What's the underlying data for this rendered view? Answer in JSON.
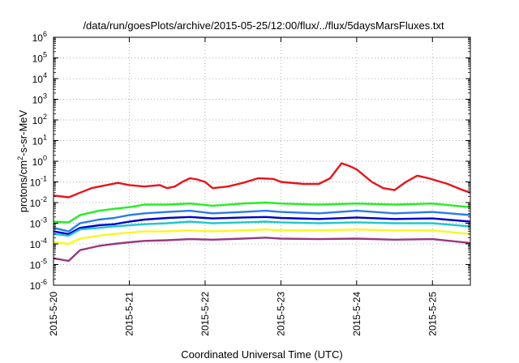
{
  "chart_data": {
    "type": "line",
    "title": "/data/run/goesPlots/archive/2015-05-25/12:00/flux/../flux/5daysMarsFluxes.txt",
    "xlabel": "Coordinated Universal Time (UTC)",
    "ylabel_parts": {
      "base": "protons/cm",
      "sup": "2",
      "rest": "-s-sr-MeV"
    },
    "yscale": "log",
    "ylim": [
      1e-06,
      1000000.0
    ],
    "xlim": [
      0,
      5.5
    ],
    "grid": true,
    "x_ticks": [
      {
        "x": 0,
        "label": "2015-5-20"
      },
      {
        "x": 1,
        "label": "2015-5-21"
      },
      {
        "x": 2,
        "label": "2015-5-22"
      },
      {
        "x": 3,
        "label": "2015-5-23"
      },
      {
        "x": 4,
        "label": "2015-5-24"
      },
      {
        "x": 5,
        "label": "2015-5-25"
      }
    ],
    "y_ticks": [
      {
        "exp": -6,
        "base": "10",
        "sup": "-6"
      },
      {
        "exp": -5,
        "base": "10",
        "sup": "-5"
      },
      {
        "exp": -4,
        "base": "10",
        "sup": "-4"
      },
      {
        "exp": -3,
        "base": "10",
        "sup": "-3"
      },
      {
        "exp": -2,
        "base": "10",
        "sup": "-2"
      },
      {
        "exp": -1,
        "base": "10",
        "sup": "-1"
      },
      {
        "exp": 0,
        "base": "10",
        "sup": "0"
      },
      {
        "exp": 1,
        "base": "10",
        "sup": "1"
      },
      {
        "exp": 2,
        "base": "10",
        "sup": "2"
      },
      {
        "exp": 3,
        "base": "10",
        "sup": "3"
      },
      {
        "exp": 4,
        "base": "10",
        "sup": "4"
      },
      {
        "exp": 5,
        "base": "10",
        "sup": "5"
      },
      {
        "exp": 6,
        "base": "10",
        "sup": "6"
      }
    ],
    "series": [
      {
        "color": "#e8141c",
        "points": [
          [
            0,
            0.022
          ],
          [
            0.2,
            0.018
          ],
          [
            0.35,
            0.03
          ],
          [
            0.5,
            0.05
          ],
          [
            0.7,
            0.07
          ],
          [
            0.85,
            0.09
          ],
          [
            1.0,
            0.07
          ],
          [
            1.2,
            0.06
          ],
          [
            1.4,
            0.07
          ],
          [
            1.5,
            0.05
          ],
          [
            1.6,
            0.06
          ],
          [
            1.7,
            0.1
          ],
          [
            1.8,
            0.15
          ],
          [
            1.9,
            0.13
          ],
          [
            2.0,
            0.1
          ],
          [
            2.1,
            0.05
          ],
          [
            2.3,
            0.06
          ],
          [
            2.5,
            0.09
          ],
          [
            2.7,
            0.15
          ],
          [
            2.9,
            0.14
          ],
          [
            3.0,
            0.1
          ],
          [
            3.3,
            0.08
          ],
          [
            3.5,
            0.08
          ],
          [
            3.65,
            0.15
          ],
          [
            3.8,
            0.8
          ],
          [
            3.9,
            0.6
          ],
          [
            4.0,
            0.4
          ],
          [
            4.2,
            0.1
          ],
          [
            4.35,
            0.05
          ],
          [
            4.5,
            0.04
          ],
          [
            4.65,
            0.1
          ],
          [
            4.8,
            0.2
          ],
          [
            4.95,
            0.15
          ],
          [
            5.2,
            0.08
          ],
          [
            5.4,
            0.04
          ],
          [
            5.5,
            0.03
          ]
        ]
      },
      {
        "color": "#22ee22",
        "points": [
          [
            0,
            0.0012
          ],
          [
            0.2,
            0.0011
          ],
          [
            0.35,
            0.0025
          ],
          [
            0.6,
            0.004
          ],
          [
            0.8,
            0.005
          ],
          [
            1.0,
            0.006
          ],
          [
            1.2,
            0.008
          ],
          [
            1.5,
            0.008
          ],
          [
            1.8,
            0.009
          ],
          [
            2.1,
            0.007
          ],
          [
            2.5,
            0.009
          ],
          [
            2.8,
            0.01
          ],
          [
            3.0,
            0.009
          ],
          [
            3.5,
            0.008
          ],
          [
            4.0,
            0.009
          ],
          [
            4.5,
            0.008
          ],
          [
            5.0,
            0.009
          ],
          [
            5.5,
            0.006
          ]
        ]
      },
      {
        "color": "#2a7ae8",
        "points": [
          [
            0,
            0.0006
          ],
          [
            0.2,
            0.0004
          ],
          [
            0.35,
            0.001
          ],
          [
            0.6,
            0.0015
          ],
          [
            0.8,
            0.0018
          ],
          [
            1.0,
            0.0025
          ],
          [
            1.2,
            0.003
          ],
          [
            1.5,
            0.0035
          ],
          [
            1.8,
            0.004
          ],
          [
            2.1,
            0.003
          ],
          [
            2.5,
            0.0035
          ],
          [
            2.8,
            0.004
          ],
          [
            3.0,
            0.0035
          ],
          [
            3.5,
            0.003
          ],
          [
            4.0,
            0.004
          ],
          [
            4.5,
            0.003
          ],
          [
            5.0,
            0.0035
          ],
          [
            5.5,
            0.0025
          ]
        ]
      },
      {
        "color": "#0000cc",
        "points": [
          [
            0,
            0.0004
          ],
          [
            0.2,
            0.0003
          ],
          [
            0.35,
            0.0006
          ],
          [
            0.6,
            0.0008
          ],
          [
            0.8,
            0.0009
          ],
          [
            1.0,
            0.0012
          ],
          [
            1.2,
            0.0015
          ],
          [
            1.5,
            0.0018
          ],
          [
            1.8,
            0.002
          ],
          [
            2.1,
            0.0017
          ],
          [
            2.5,
            0.0019
          ],
          [
            2.8,
            0.002
          ],
          [
            3.0,
            0.0018
          ],
          [
            3.5,
            0.0016
          ],
          [
            4.0,
            0.0019
          ],
          [
            4.5,
            0.0016
          ],
          [
            5.0,
            0.0017
          ],
          [
            5.5,
            0.0012
          ]
        ]
      },
      {
        "color": "#20c8c8",
        "points": [
          [
            0,
            0.0003
          ],
          [
            0.2,
            0.00025
          ],
          [
            0.35,
            0.0005
          ],
          [
            0.6,
            0.0006
          ],
          [
            0.8,
            0.0007
          ],
          [
            1.0,
            0.0008
          ],
          [
            1.2,
            0.0009
          ],
          [
            1.5,
            0.001
          ],
          [
            1.8,
            0.0012
          ],
          [
            2.1,
            0.001
          ],
          [
            2.5,
            0.0011
          ],
          [
            2.8,
            0.0012
          ],
          [
            3.0,
            0.0011
          ],
          [
            3.5,
            0.001
          ],
          [
            4.0,
            0.0011
          ],
          [
            4.5,
            0.001
          ],
          [
            5.0,
            0.001
          ],
          [
            5.5,
            0.0007
          ]
        ]
      },
      {
        "color": "#f8f820",
        "points": [
          [
            0,
            0.00012
          ],
          [
            0.2,
            0.0001
          ],
          [
            0.35,
            0.00018
          ],
          [
            0.6,
            0.00025
          ],
          [
            0.8,
            0.0003
          ],
          [
            1.0,
            0.00035
          ],
          [
            1.2,
            0.0004
          ],
          [
            1.5,
            0.0004
          ],
          [
            1.8,
            0.00045
          ],
          [
            2.1,
            0.0004
          ],
          [
            2.5,
            0.00045
          ],
          [
            2.8,
            0.0005
          ],
          [
            3.0,
            0.00045
          ],
          [
            3.5,
            0.00045
          ],
          [
            4.0,
            0.0005
          ],
          [
            4.5,
            0.00045
          ],
          [
            5.0,
            0.00045
          ],
          [
            5.5,
            0.0003
          ]
        ]
      },
      {
        "color": "#983880",
        "points": [
          [
            0,
            2e-05
          ],
          [
            0.2,
            1.5e-05
          ],
          [
            0.35,
            5e-05
          ],
          [
            0.6,
            8e-05
          ],
          [
            0.8,
            0.0001
          ],
          [
            1.0,
            0.00012
          ],
          [
            1.2,
            0.00014
          ],
          [
            1.5,
            0.00015
          ],
          [
            1.8,
            0.00017
          ],
          [
            2.1,
            0.00016
          ],
          [
            2.5,
            0.00018
          ],
          [
            2.8,
            0.0002
          ],
          [
            3.0,
            0.00018
          ],
          [
            3.5,
            0.00017
          ],
          [
            4.0,
            0.00018
          ],
          [
            4.5,
            0.00016
          ],
          [
            5.0,
            0.00017
          ],
          [
            5.5,
            0.00011
          ]
        ]
      }
    ]
  }
}
